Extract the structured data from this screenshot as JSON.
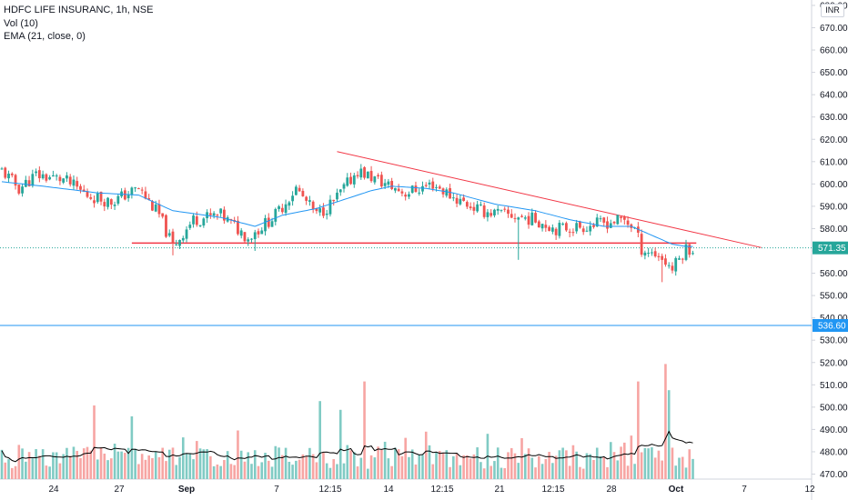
{
  "legend": {
    "title": "HDFC LIFE INSURANC, 1h, NSE",
    "vol": "Vol (10)",
    "ema": "EMA (21, close, 0)"
  },
  "currency_label": "INR",
  "colors": {
    "up": "#26a69a",
    "down": "#ef5350",
    "vol_up": "#80cbc4",
    "vol_down": "#f7a5a3",
    "ema": "#2196f3",
    "trendline": "#f23645",
    "hline_blue": "#2196f3",
    "vol_ma": "#000000"
  },
  "chart_data": {
    "type": "candlestick",
    "title": "HDFC LIFE INSURANC, 1h, NSE",
    "y_axis": {
      "range": [
        466,
        680
      ],
      "ticks": [
        680,
        670,
        660,
        650,
        640,
        630,
        620,
        610,
        600,
        590,
        580,
        570,
        560,
        550,
        540,
        530,
        520,
        510,
        500,
        490,
        480,
        470
      ]
    },
    "x_axis": {
      "ticks": [
        "24",
        "27",
        "Sep",
        "7",
        "12:15",
        "14",
        "12:15",
        "21",
        "12:15",
        "28",
        "Oct",
        "7",
        "12"
      ]
    },
    "price_labels": [
      {
        "value": "571.35",
        "price": 571.35,
        "color": "#26a69a"
      },
      {
        "value": "536.60",
        "price": 536.6,
        "color": "#2196f3"
      }
    ],
    "horizontal_lines": [
      {
        "price": 536.6,
        "color": "#2196f3"
      },
      {
        "price": 573.5,
        "color": "#f23645",
        "from_bar": 38,
        "to_bar": 203
      }
    ],
    "trendline": {
      "from": [
        98,
        614.5
      ],
      "to": [
        222,
        571.5
      ],
      "color": "#f23645"
    },
    "support_level": 573.5,
    "current_price": 571.35,
    "series": [
      {
        "name": "Price",
        "type": "candles",
        "anchors": [
          [
            0,
            606
          ],
          [
            5,
            598
          ],
          [
            10,
            604
          ],
          [
            18,
            602
          ],
          [
            25,
            595
          ],
          [
            32,
            592
          ],
          [
            40,
            598
          ],
          [
            46,
            586
          ],
          [
            50,
            572
          ],
          [
            56,
            584
          ],
          [
            64,
            586
          ],
          [
            72,
            576
          ],
          [
            80,
            586
          ],
          [
            86,
            598
          ],
          [
            92,
            586
          ],
          [
            97,
            592
          ],
          [
            104,
            606
          ],
          [
            112,
            600
          ],
          [
            118,
            596
          ],
          [
            126,
            600
          ],
          [
            132,
            594
          ],
          [
            140,
            588
          ],
          [
            148,
            586
          ],
          [
            156,
            584
          ],
          [
            162,
            580
          ],
          [
            170,
            581
          ],
          [
            178,
            583
          ],
          [
            182,
            584
          ],
          [
            185,
            580
          ],
          [
            187,
            571
          ],
          [
            192,
            568
          ],
          [
            196,
            562
          ],
          [
            200,
            571
          ]
        ],
        "wicks": [
          [
            50,
            568
          ],
          [
            74,
            570
          ],
          [
            151,
            566
          ],
          [
            193,
            556
          ]
        ]
      },
      {
        "name": "EMA (21, close, 0)",
        "type": "line",
        "anchors": [
          [
            0,
            601
          ],
          [
            12,
            599
          ],
          [
            28,
            596
          ],
          [
            40,
            595
          ],
          [
            50,
            588
          ],
          [
            64,
            585
          ],
          [
            74,
            581
          ],
          [
            82,
            586
          ],
          [
            92,
            589
          ],
          [
            100,
            593
          ],
          [
            108,
            597
          ],
          [
            114,
            599
          ],
          [
            124,
            598
          ],
          [
            132,
            596
          ],
          [
            144,
            591
          ],
          [
            156,
            588
          ],
          [
            166,
            584
          ],
          [
            176,
            581
          ],
          [
            184,
            581
          ],
          [
            190,
            577
          ],
          [
            196,
            573
          ],
          [
            200,
            572
          ]
        ]
      },
      {
        "name": "Vol (10)",
        "type": "bars",
        "spikes": [
          [
            27,
            500
          ],
          [
            38,
            495
          ],
          [
            93,
            502
          ],
          [
            99,
            498
          ],
          [
            106,
            511
          ],
          [
            124,
            488
          ],
          [
            142,
            487
          ],
          [
            152,
            485
          ],
          [
            186,
            511
          ],
          [
            194,
            519
          ],
          [
            195,
            507
          ]
        ]
      }
    ]
  }
}
